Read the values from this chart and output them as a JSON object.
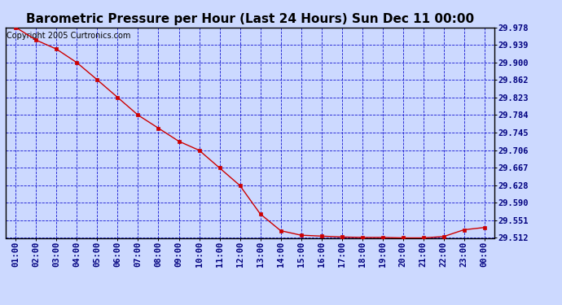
{
  "title": "Barometric Pressure per Hour (Last 24 Hours) Sun Dec 11 00:00",
  "copyright": "Copyright 2005 Curtronics.com",
  "x_labels": [
    "01:00",
    "02:00",
    "03:00",
    "04:00",
    "05:00",
    "06:00",
    "07:00",
    "08:00",
    "09:00",
    "10:00",
    "11:00",
    "12:00",
    "13:00",
    "14:00",
    "15:00",
    "16:00",
    "17:00",
    "18:00",
    "19:00",
    "20:00",
    "21:00",
    "22:00",
    "23:00",
    "00:00"
  ],
  "y_values": [
    29.978,
    29.95,
    29.93,
    29.9,
    29.862,
    29.823,
    29.784,
    29.755,
    29.726,
    29.706,
    29.667,
    29.628,
    29.565,
    29.528,
    29.518,
    29.516,
    29.514,
    29.513,
    29.513,
    29.512,
    29.512,
    29.515,
    29.53,
    29.535
  ],
  "ylim_min": 29.512,
  "ylim_max": 29.978,
  "yticks": [
    29.512,
    29.551,
    29.59,
    29.628,
    29.667,
    29.706,
    29.745,
    29.784,
    29.823,
    29.862,
    29.9,
    29.939,
    29.978
  ],
  "line_color": "#cc0000",
  "marker_color": "#cc0000",
  "bg_color": "#ccd9ff",
  "plot_bg_color": "#ccd9ff",
  "grid_color": "#0000cc",
  "title_fontsize": 11,
  "copyright_fontsize": 7,
  "tick_fontsize": 7.5,
  "border_color": "#000000"
}
